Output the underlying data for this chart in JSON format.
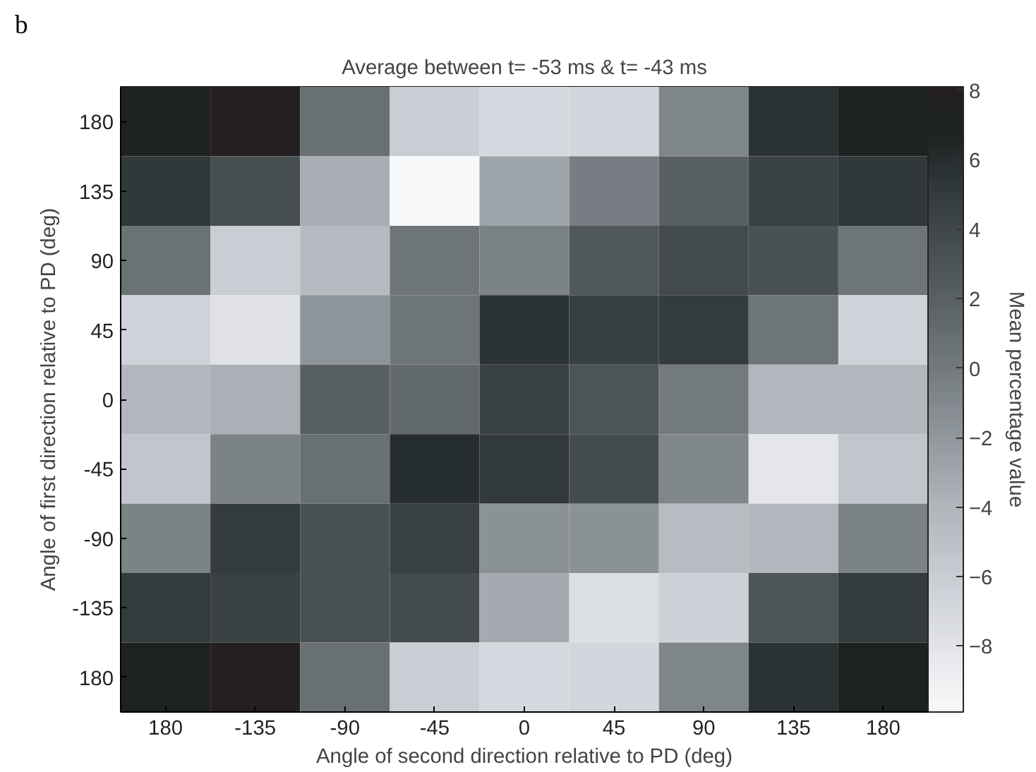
{
  "chart_data": {
    "type": "heatmap",
    "title": "Average between t= -53 ms & t= -43 ms",
    "xlabel": "Angle of second direction relative to PD (deg)",
    "ylabel": "Angle of first direction relative to PD (deg)",
    "clabel": "Mean percentage value",
    "annotations": [
      "b"
    ],
    "categories": [
      "180",
      "-135",
      "-90",
      "-45",
      "0",
      "45",
      "90",
      "135",
      "180"
    ],
    "y_categories": [
      "180",
      "135",
      "90",
      "45",
      "0",
      "-45",
      "-90",
      "-135",
      "180"
    ],
    "cells": [
      [
        7,
        8,
        0.8,
        -6,
        -7,
        -6.8,
        -0.8,
        5.7,
        7
      ],
      [
        5.2,
        3.5,
        -3.5,
        -9.9,
        -2.8,
        -0.2,
        2,
        4.5,
        5.2
      ],
      [
        0.6,
        -6,
        -4.5,
        0.4,
        -0.5,
        2.7,
        3.8,
        3.2,
        0.4
      ],
      [
        -6.5,
        -7.8,
        -1.8,
        0.4,
        5.6,
        4.7,
        5,
        0.4,
        -6.5
      ],
      [
        -4.2,
        -3.6,
        2,
        1.3,
        4.6,
        3,
        0,
        -4.2,
        -4.2
      ],
      [
        -5.4,
        -0.6,
        0.8,
        6,
        5.1,
        3.7,
        -0.9,
        -8.2,
        -5.4
      ],
      [
        -0.6,
        5,
        3.2,
        4.6,
        -1.6,
        -1.6,
        -4.6,
        -4.2,
        -0.6
      ],
      [
        5,
        4.5,
        3.2,
        3.7,
        -3.2,
        -7.5,
        -6.3,
        3,
        5
      ],
      [
        7,
        8,
        0.8,
        -6,
        -7,
        -6.8,
        -0.8,
        5.7,
        7
      ]
    ],
    "clim": [
      -9.9,
      8.1
    ],
    "cticks": [
      -8,
      -6,
      -4,
      -2,
      0,
      2,
      4,
      6,
      8
    ]
  }
}
